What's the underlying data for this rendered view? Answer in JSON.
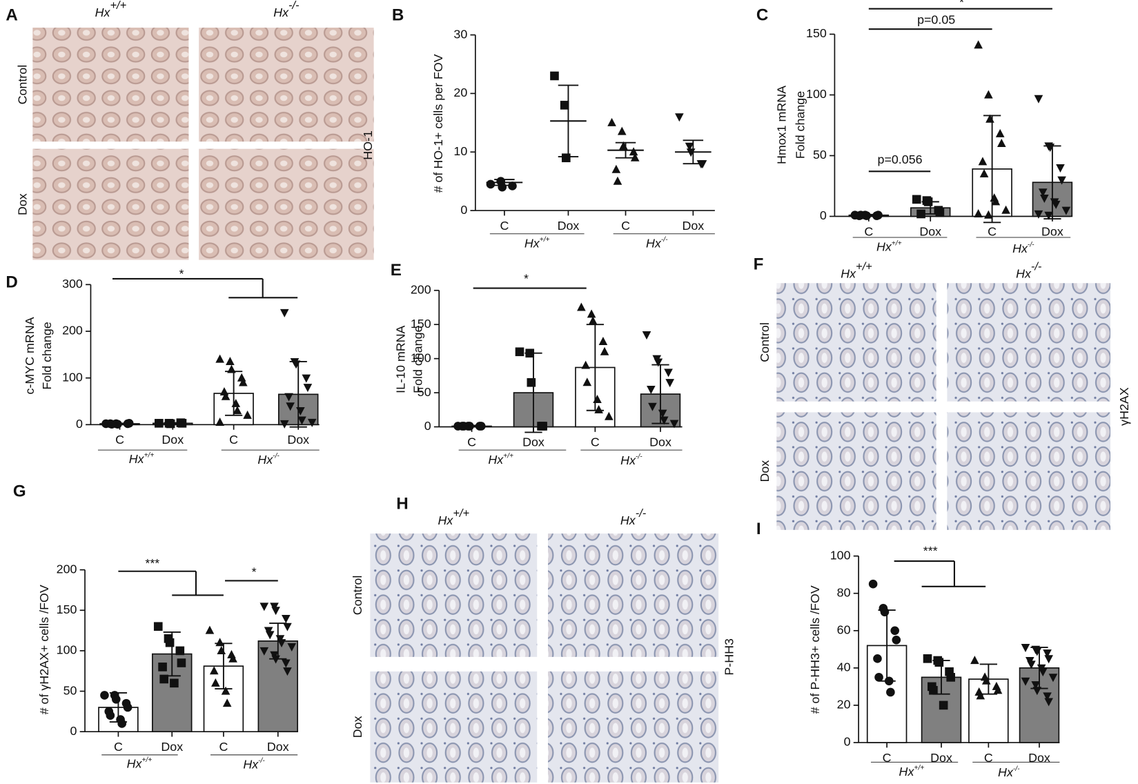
{
  "figure_panels": [
    {
      "letter": "A",
      "columns": [
        {
          "name": "Hx",
          "sup": "+/+"
        },
        {
          "name": "Hx",
          "sup": "-/-"
        }
      ],
      "rows": [
        "Control",
        "Dox"
      ],
      "stain": "HO-1"
    },
    {
      "letter": "F",
      "columns": [
        {
          "name": "Hx",
          "sup": "+/+"
        },
        {
          "name": "Hx",
          "sup": "-/-"
        }
      ],
      "rows": [
        "Control",
        "Dox"
      ],
      "stain": "γH2AX"
    },
    {
      "letter": "H",
      "columns": [
        {
          "name": "Hx",
          "sup": "+/+"
        },
        {
          "name": "Hx",
          "sup": "-/-"
        }
      ],
      "rows": [
        "Control",
        "Dox"
      ],
      "stain": "P-HH3"
    }
  ],
  "chart_data": [
    {
      "type": "dot",
      "letter": "B",
      "ylabel": [
        "# of HO-1+ cells per FOV"
      ],
      "categories": [
        "C",
        "Dox",
        "C",
        "Dox"
      ],
      "groups": [
        {
          "name": "Hx",
          "sup": "+/+"
        },
        {
          "name": "Hx",
          "sup": "-/-"
        }
      ],
      "markers": [
        "circle",
        "square",
        "triangle",
        "triangle-down"
      ],
      "values": [
        4.8,
        15.3,
        10.3,
        10
      ],
      "errors": [
        0.5,
        6.1,
        1.3,
        2
      ],
      "points": [
        [
          4.5,
          5,
          4,
          4.2
        ],
        [
          23,
          18,
          9
        ],
        [
          15,
          13.5,
          11,
          10,
          9,
          7,
          5
        ],
        [
          16,
          11,
          10,
          8,
          8
        ]
      ],
      "ylim": [
        0,
        30
      ],
      "yticks": [
        0,
        10,
        20,
        30
      ],
      "annotations": []
    },
    {
      "type": "bar",
      "letter": "C",
      "ylabel": [
        "Hmox1 mRNA",
        "Fold change"
      ],
      "categories": [
        "C",
        "Dox",
        "C",
        "Dox"
      ],
      "groups": [
        {
          "name": "Hx",
          "sup": "+/+"
        },
        {
          "name": "Hx",
          "sup": "-/-"
        }
      ],
      "markers": [
        "circle",
        "square",
        "triangle",
        "triangle-down"
      ],
      "colors": [
        "#ffffff",
        "#808080",
        "#ffffff",
        "#808080"
      ],
      "values": [
        1,
        7,
        39,
        28
      ],
      "errors": [
        0.5,
        5,
        44,
        30
      ],
      "points": [
        [
          1,
          1,
          0.5,
          0.5,
          1,
          0.5,
          1
        ],
        [
          14,
          13,
          12,
          5,
          3,
          2
        ],
        [
          141,
          100,
          80,
          68,
          60,
          45,
          35,
          15,
          12,
          5,
          2,
          1
        ],
        [
          97,
          58,
          57,
          40,
          30,
          20,
          15,
          12,
          10,
          5,
          2,
          1
        ]
      ],
      "ylim": [
        0,
        150
      ],
      "yticks": [
        0,
        50,
        100,
        150
      ],
      "annotations": [
        "*",
        "p=0.05",
        "p=0.056"
      ]
    },
    {
      "type": "bar",
      "letter": "D",
      "ylabel": [
        "c-MYC mRNA",
        "Fold change"
      ],
      "categories": [
        "C",
        "Dox",
        "C",
        "Dox"
      ],
      "groups": [
        {
          "name": "Hx",
          "sup": "+/+"
        },
        {
          "name": "Hx",
          "sup": "-/-"
        }
      ],
      "markers": [
        "circle",
        "square",
        "triangle",
        "triangle-down"
      ],
      "colors": [
        "#ffffff",
        "#808080",
        "#ffffff",
        "#808080"
      ],
      "values": [
        2,
        3,
        67,
        65
      ],
      "errors": [
        1,
        1,
        47,
        70
      ],
      "points": [
        [
          2,
          2,
          1,
          2,
          3,
          2,
          1
        ],
        [
          3,
          3,
          2,
          4,
          3
        ],
        [
          140,
          135,
          118,
          100,
          90,
          70,
          60,
          45,
          30,
          20,
          5
        ],
        [
          240,
          135,
          130,
          100,
          80,
          60,
          40,
          30,
          10,
          5,
          2
        ]
      ],
      "ylim": [
        0,
        300
      ],
      "yticks": [
        0,
        100,
        200,
        300
      ],
      "annotations": [
        "*"
      ]
    },
    {
      "type": "bar",
      "letter": "E",
      "ylabel": [
        "IL-10 mRNA",
        "Fold change"
      ],
      "categories": [
        "C",
        "Dox",
        "C",
        "Dox"
      ],
      "groups": [
        {
          "name": "Hx",
          "sup": "+/+"
        },
        {
          "name": "Hx",
          "sup": "-/-"
        }
      ],
      "markers": [
        "circle",
        "square",
        "triangle",
        "triangle-down"
      ],
      "colors": [
        "#ffffff",
        "#808080",
        "#ffffff",
        "#808080"
      ],
      "values": [
        1,
        50,
        87,
        48
      ],
      "errors": [
        1,
        58,
        63,
        43
      ],
      "points": [
        [
          1,
          1,
          1,
          1,
          1,
          1,
          1
        ],
        [
          110,
          108,
          65,
          1,
          1
        ],
        [
          175,
          165,
          155,
          125,
          110,
          90,
          65,
          40,
          25,
          15
        ],
        [
          135,
          100,
          95,
          80,
          65,
          55,
          30,
          20,
          10,
          5
        ]
      ],
      "ylim": [
        0,
        200
      ],
      "yticks": [
        0,
        50,
        100,
        150,
        200
      ],
      "annotations": [
        "*"
      ]
    },
    {
      "type": "bar",
      "letter": "G",
      "ylabel": [
        "# of γH2AX+ cells /FOV"
      ],
      "categories": [
        "C",
        "Dox",
        "C",
        "Dox"
      ],
      "groups": [
        {
          "name": "Hx",
          "sup": "+/+"
        },
        {
          "name": "Hx",
          "sup": "-/-"
        }
      ],
      "markers": [
        "circle",
        "square",
        "triangle",
        "triangle-down"
      ],
      "colors": [
        "#ffffff",
        "#808080",
        "#ffffff",
        "#808080"
      ],
      "values": [
        30,
        96,
        81,
        112
      ],
      "errors": [
        18,
        27,
        28,
        22
      ],
      "points": [
        [
          45,
          45,
          40,
          35,
          30,
          25,
          20,
          15,
          10
        ],
        [
          130,
          115,
          110,
          100,
          85,
          80,
          65,
          60
        ],
        [
          125,
          110,
          100,
          95,
          90,
          75,
          60,
          50,
          35
        ],
        [
          155,
          155,
          150,
          140,
          130,
          125,
          120,
          115,
          110,
          105,
          100,
          95,
          90,
          85,
          75
        ]
      ],
      "ylim": [
        0,
        200
      ],
      "yticks": [
        0,
        50,
        100,
        150,
        200
      ],
      "annotations": [
        "***",
        "*"
      ]
    },
    {
      "type": "bar",
      "letter": "I",
      "ylabel": [
        "# of P-HH3+ cells /FOV"
      ],
      "categories": [
        "C",
        "Dox",
        "C",
        "Dox"
      ],
      "groups": [
        {
          "name": "Hx",
          "sup": "+/+"
        },
        {
          "name": "Hx",
          "sup": "-/-"
        }
      ],
      "markers": [
        "circle",
        "square",
        "triangle",
        "triangle-down"
      ],
      "colors": [
        "#ffffff",
        "#808080",
        "#ffffff",
        "#808080"
      ],
      "values": [
        52,
        35,
        34,
        40
      ],
      "errors": [
        19,
        9,
        8,
        11
      ],
      "points": [
        [
          85,
          72,
          70,
          60,
          55,
          45,
          35,
          33,
          27
        ],
        [
          45,
          44,
          43,
          38,
          35,
          30,
          28,
          20
        ],
        [
          44,
          35,
          33,
          30,
          28,
          27,
          25
        ],
        [
          51,
          50,
          49,
          48,
          45,
          44,
          42,
          40,
          38,
          35,
          33,
          31,
          28,
          25,
          22
        ]
      ],
      "ylim": [
        0,
        100
      ],
      "yticks": [
        0,
        20,
        40,
        60,
        80,
        100
      ],
      "annotations": [
        "***"
      ]
    }
  ]
}
